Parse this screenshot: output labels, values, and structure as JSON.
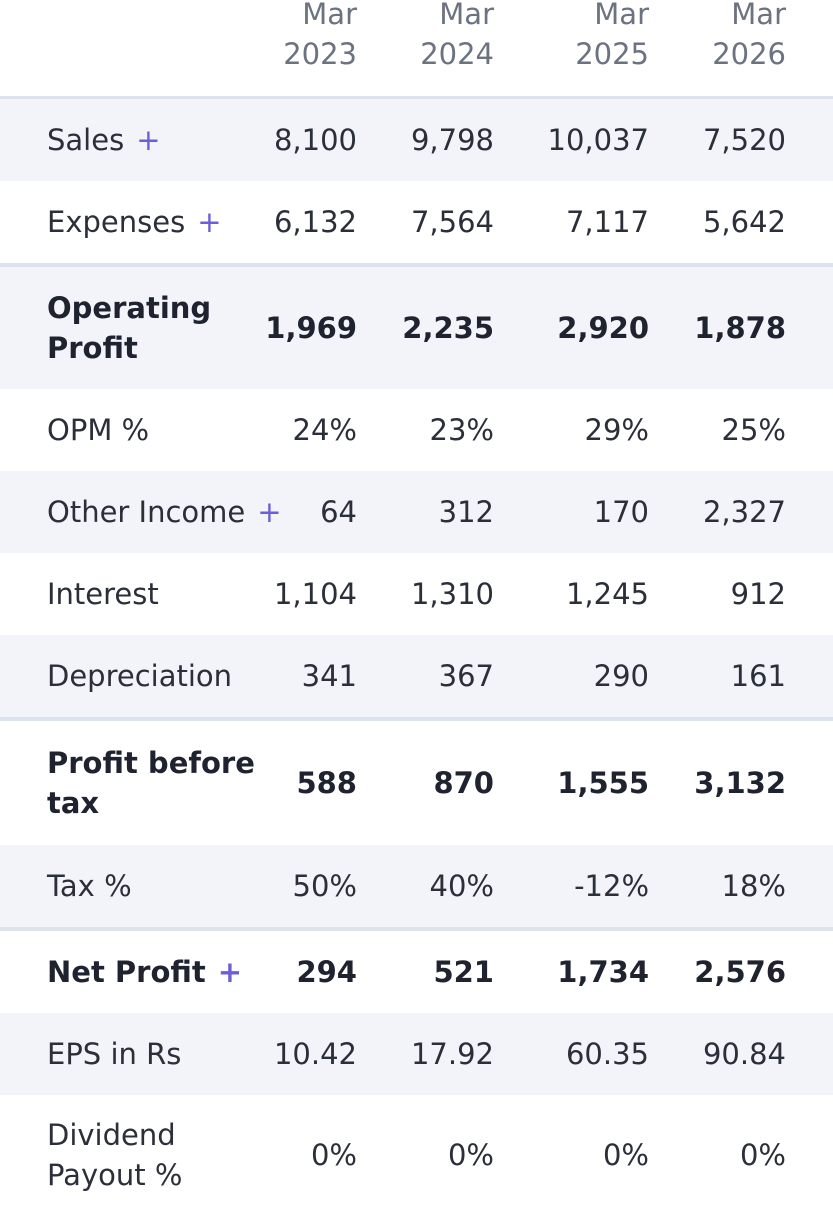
{
  "columns": [
    {
      "line1": "Mar",
      "line2": "2023"
    },
    {
      "line1": "Mar",
      "line2": "2024"
    },
    {
      "line1": "Mar",
      "line2": "2025"
    },
    {
      "line1": "Mar",
      "line2": "2026"
    }
  ],
  "rows": [
    {
      "label": "Sales",
      "expandable": "+",
      "values": [
        "8,100",
        "9,798",
        "10,037",
        "7,520"
      ]
    },
    {
      "label": "Expenses",
      "expandable": "+",
      "values": [
        "6,132",
        "7,564",
        "7,117",
        "5,642"
      ]
    },
    {
      "label_line1": "Operating",
      "label_line2": "Profit",
      "values": [
        "1,969",
        "2,235",
        "2,920",
        "1,878"
      ]
    },
    {
      "label": "OPM %",
      "values": [
        "24%",
        "23%",
        "29%",
        "25%"
      ]
    },
    {
      "label": "Other Income",
      "expandable": "+",
      "values": [
        "64",
        "312",
        "170",
        "2,327"
      ]
    },
    {
      "label": "Interest",
      "values": [
        "1,104",
        "1,310",
        "1,245",
        "912"
      ]
    },
    {
      "label": "Depreciation",
      "values": [
        "341",
        "367",
        "290",
        "161"
      ]
    },
    {
      "label_line1": "Profit before",
      "label_line2": "tax",
      "values": [
        "588",
        "870",
        "1,555",
        "3,132"
      ]
    },
    {
      "label": "Tax %",
      "values": [
        "50%",
        "40%",
        "-12%",
        "18%"
      ]
    },
    {
      "label": "Net Profit",
      "expandable": "+",
      "values": [
        "294",
        "521",
        "1,734",
        "2,576"
      ]
    },
    {
      "label": "EPS in Rs",
      "values": [
        "10.42",
        "17.92",
        "60.35",
        "90.84"
      ]
    },
    {
      "label_line1": "Dividend",
      "label_line2": "Payout %",
      "values": [
        "0%",
        "0%",
        "0%",
        "0%"
      ]
    }
  ]
}
